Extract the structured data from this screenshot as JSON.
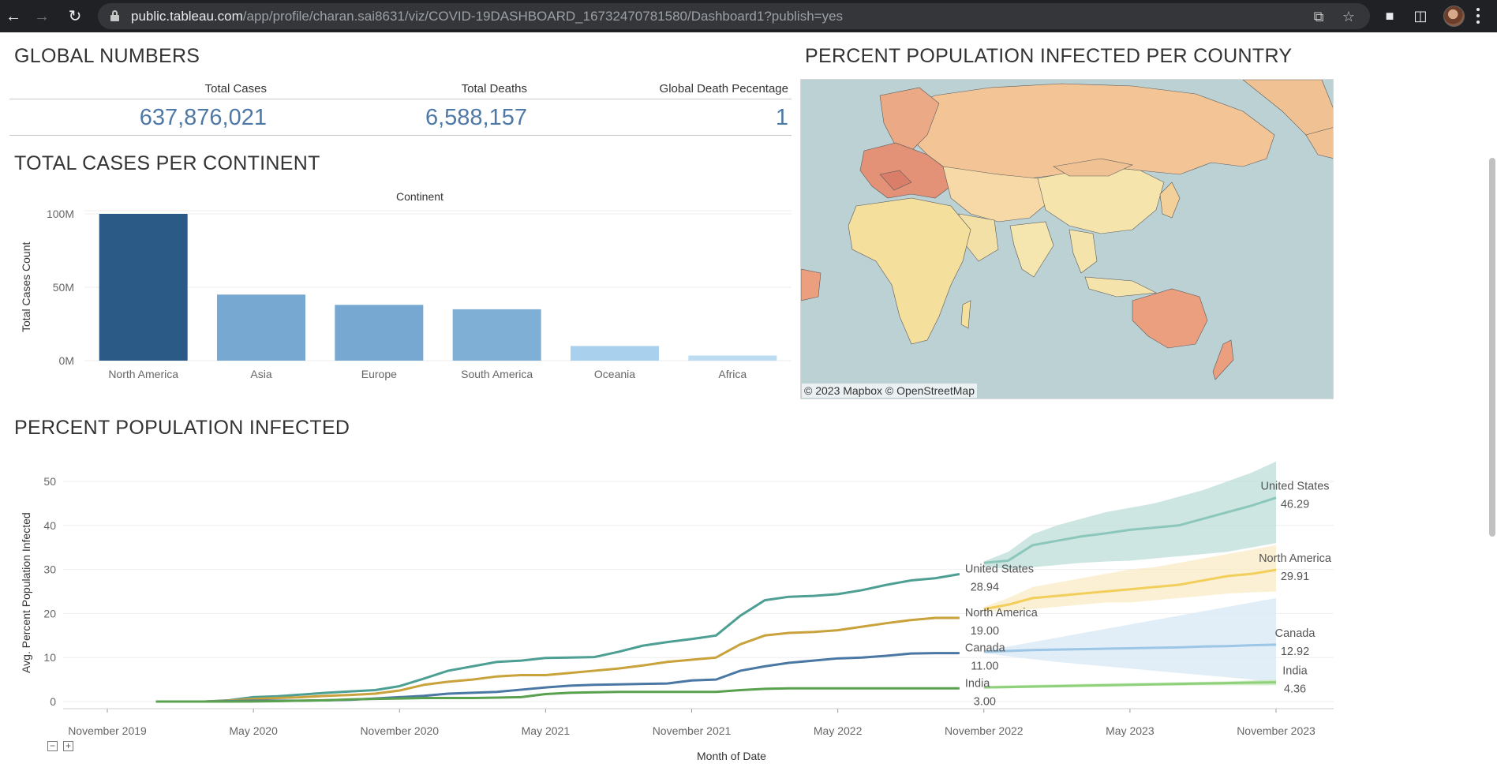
{
  "browser": {
    "url_host": "public.tableau.com",
    "url_path": "/app/profile/charan.sai8631/viz/COVID-19DASHBOARD_16732470781580/Dashboard1?publish=yes",
    "icons": [
      "back-arrow-icon",
      "forward-arrow-icon",
      "reload-icon",
      "lock-icon",
      "share-icon",
      "star-icon",
      "puzzle-icon",
      "sidebar-icon",
      "avatar",
      "kebab-menu-icon"
    ]
  },
  "global_numbers": {
    "title": "GLOBAL NUMBERS",
    "columns": [
      {
        "header": "Total Cases",
        "value": "637,876,021"
      },
      {
        "header": "Total Deaths",
        "value": "6,588,157"
      },
      {
        "header": "Global Death Pecentage",
        "value": "1"
      }
    ],
    "value_color": "#4e79a7"
  },
  "continent_section": {
    "title": "TOTAL CASES PER CONTINENT"
  },
  "map_section": {
    "title": "PERCENT POPULATION INFECTED PER COUNTRY",
    "credit": "© 2023 Mapbox  © OpenStreetMap"
  },
  "infected_section": {
    "title": "PERCENT POPULATION INFECTED"
  },
  "chart_data": [
    {
      "type": "bar",
      "title": "",
      "header": "Continent",
      "xlabel": "",
      "ylabel": "Total Cases Count",
      "categories": [
        "North America",
        "Asia",
        "Europe",
        "South America",
        "Oceania",
        "Africa"
      ],
      "values": [
        100000000,
        45000000,
        38000000,
        35000000,
        10000000,
        3500000
      ],
      "ylim": [
        0,
        100000000
      ],
      "yticks": [
        0,
        50000000,
        100000000
      ],
      "ytick_labels": [
        "0M",
        "50M",
        "100M"
      ],
      "colors": [
        "#2b5a87",
        "#77a8d2",
        "#77a8d2",
        "#80afd5",
        "#a9d0ec",
        "#bcdcf2"
      ],
      "grid": true
    },
    {
      "type": "line",
      "title": "",
      "xlabel": "Month of Date",
      "ylabel": "Avg. Percent Population Infected",
      "ylim": [
        0,
        55
      ],
      "yticks": [
        0,
        10,
        20,
        30,
        40,
        50
      ],
      "x_range": [
        "2019-10",
        "2024-02"
      ],
      "x_ticks": [
        "2019-11",
        "2020-05",
        "2020-11",
        "2021-05",
        "2021-11",
        "2022-05",
        "2022-11",
        "2023-05",
        "2023-11"
      ],
      "x_tick_labels": [
        "November 2019",
        "May 2020",
        "November 2020",
        "May 2021",
        "November 2021",
        "May 2022",
        "November 2022",
        "May 2023",
        "November 2023"
      ],
      "grid": true,
      "series": [
        {
          "name": "United States",
          "color": "#4e9f93",
          "forecast_color": "#8cc7bc",
          "band_color": "#bcded8",
          "x": [
            "2020-01",
            "2020-02",
            "2020-03",
            "2020-04",
            "2020-05",
            "2020-06",
            "2020-07",
            "2020-08",
            "2020-09",
            "2020-10",
            "2020-11",
            "2020-12",
            "2021-01",
            "2021-02",
            "2021-03",
            "2021-04",
            "2021-05",
            "2021-06",
            "2021-07",
            "2021-08",
            "2021-09",
            "2021-10",
            "2021-11",
            "2021-12",
            "2022-01",
            "2022-02",
            "2022-03",
            "2022-04",
            "2022-05",
            "2022-06",
            "2022-07",
            "2022-08",
            "2022-09",
            "2022-10"
          ],
          "y": [
            0,
            0,
            0,
            0.3,
            1.0,
            1.2,
            1.6,
            2.0,
            2.3,
            2.6,
            3.5,
            5.2,
            7.0,
            8.0,
            9.0,
            9.3,
            9.9,
            10.0,
            10.1,
            11.3,
            12.7,
            13.5,
            14.2,
            15.0,
            19.5,
            23.0,
            23.8,
            24.0,
            24.4,
            25.3,
            26.5,
            27.5,
            28.0,
            28.94
          ],
          "end_label": "28.94",
          "forecast_x": [
            "2022-11",
            "2022-12",
            "2023-01",
            "2023-02",
            "2023-03",
            "2023-04",
            "2023-05",
            "2023-06",
            "2023-07",
            "2023-08",
            "2023-09",
            "2023-10",
            "2023-11"
          ],
          "forecast_y": [
            31.5,
            32.0,
            35.5,
            36.5,
            37.5,
            38.2,
            39.0,
            39.5,
            40.0,
            41.5,
            43.0,
            44.5,
            46.29
          ],
          "forecast_label": "46.29",
          "band_low": [
            30.8,
            30.0,
            30.5,
            31.0,
            31.5,
            31.8,
            32.0,
            32.5,
            33.0,
            33.5,
            34.0,
            35.0,
            36.0
          ],
          "band_high": [
            31.8,
            34.0,
            38.0,
            40.0,
            41.5,
            43.0,
            44.0,
            45.0,
            46.5,
            48.0,
            50.0,
            52.0,
            54.5
          ]
        },
        {
          "name": "North America",
          "color": "#c9a23c",
          "forecast_color": "#f2ce5b",
          "band_color": "#faebc4",
          "x": [
            "2020-01",
            "2020-02",
            "2020-03",
            "2020-04",
            "2020-05",
            "2020-06",
            "2020-07",
            "2020-08",
            "2020-09",
            "2020-10",
            "2020-11",
            "2020-12",
            "2021-01",
            "2021-02",
            "2021-03",
            "2021-04",
            "2021-05",
            "2021-06",
            "2021-07",
            "2021-08",
            "2021-09",
            "2021-10",
            "2021-11",
            "2021-12",
            "2022-01",
            "2022-02",
            "2022-03",
            "2022-04",
            "2022-05",
            "2022-06",
            "2022-07",
            "2022-08",
            "2022-09",
            "2022-10"
          ],
          "y": [
            0,
            0,
            0,
            0.2,
            0.6,
            0.8,
            1.0,
            1.3,
            1.5,
            1.8,
            2.5,
            3.8,
            4.5,
            5.0,
            5.7,
            6.0,
            6.0,
            6.5,
            7.0,
            7.5,
            8.2,
            9.0,
            9.5,
            10.0,
            13.0,
            15.0,
            15.6,
            15.8,
            16.2,
            17.0,
            17.8,
            18.5,
            19.0,
            19.0
          ],
          "end_label": "19.00",
          "forecast_x": [
            "2022-11",
            "2022-12",
            "2023-01",
            "2023-02",
            "2023-03",
            "2023-04",
            "2023-05",
            "2023-06",
            "2023-07",
            "2023-08",
            "2023-09",
            "2023-10",
            "2023-11"
          ],
          "forecast_y": [
            21.0,
            22.0,
            23.5,
            24.0,
            24.5,
            25.0,
            25.5,
            26.0,
            26.5,
            27.5,
            28.5,
            29.0,
            29.91
          ],
          "forecast_label": "29.91",
          "band_low": [
            20.5,
            20.5,
            21.0,
            21.5,
            22.0,
            22.5,
            22.5,
            23.0,
            23.5,
            24.0,
            24.5,
            24.8,
            25.0
          ],
          "band_high": [
            21.5,
            23.5,
            26.0,
            27.0,
            28.0,
            29.0,
            30.0,
            30.5,
            31.5,
            32.5,
            33.5,
            34.5,
            35.5
          ]
        },
        {
          "name": "Canada",
          "color": "#4a77a3",
          "forecast_color": "#9cc6e6",
          "band_color": "#d7e8f4",
          "x": [
            "2020-01",
            "2020-02",
            "2020-03",
            "2020-04",
            "2020-05",
            "2020-06",
            "2020-07",
            "2020-08",
            "2020-09",
            "2020-10",
            "2020-11",
            "2020-12",
            "2021-01",
            "2021-02",
            "2021-03",
            "2021-04",
            "2021-05",
            "2021-06",
            "2021-07",
            "2021-08",
            "2021-09",
            "2021-10",
            "2021-11",
            "2021-12",
            "2022-01",
            "2022-02",
            "2022-03",
            "2022-04",
            "2022-05",
            "2022-06",
            "2022-07",
            "2022-08",
            "2022-09",
            "2022-10"
          ],
          "y": [
            0,
            0,
            0,
            0.1,
            0.2,
            0.2,
            0.2,
            0.3,
            0.4,
            0.7,
            1.0,
            1.3,
            1.8,
            2.0,
            2.2,
            2.7,
            3.2,
            3.6,
            3.8,
            3.9,
            4.0,
            4.1,
            4.8,
            5.0,
            7.0,
            8.0,
            8.8,
            9.3,
            9.8,
            10.0,
            10.4,
            10.9,
            11.0,
            11.0
          ],
          "end_label": "11.00",
          "forecast_x": [
            "2022-11",
            "2022-12",
            "2023-01",
            "2023-02",
            "2023-03",
            "2023-04",
            "2023-05",
            "2023-06",
            "2023-07",
            "2023-08",
            "2023-09",
            "2023-10",
            "2023-11"
          ],
          "forecast_y": [
            11.3,
            11.5,
            11.7,
            11.8,
            11.9,
            12.0,
            12.1,
            12.2,
            12.3,
            12.5,
            12.6,
            12.8,
            12.92
          ],
          "forecast_label": "12.92",
          "band_low": [
            11.0,
            10.3,
            9.6,
            9.0,
            8.5,
            8.0,
            7.5,
            7.0,
            6.5,
            6.0,
            5.5,
            5.0,
            4.0
          ],
          "band_high": [
            11.6,
            12.5,
            13.5,
            14.5,
            15.5,
            16.5,
            17.5,
            18.5,
            19.5,
            20.5,
            21.5,
            22.5,
            23.5
          ]
        },
        {
          "name": "India",
          "color": "#59a14f",
          "forecast_color": "#8fd17a",
          "band_color": "#c9e8bd",
          "x": [
            "2020-01",
            "2020-02",
            "2020-03",
            "2020-04",
            "2020-05",
            "2020-06",
            "2020-07",
            "2020-08",
            "2020-09",
            "2020-10",
            "2020-11",
            "2020-12",
            "2021-01",
            "2021-02",
            "2021-03",
            "2021-04",
            "2021-05",
            "2021-06",
            "2021-07",
            "2021-08",
            "2021-09",
            "2021-10",
            "2021-11",
            "2021-12",
            "2022-01",
            "2022-02",
            "2022-03",
            "2022-04",
            "2022-05",
            "2022-06",
            "2022-07",
            "2022-08",
            "2022-09",
            "2022-10"
          ],
          "y": [
            0,
            0,
            0,
            0,
            0.02,
            0.1,
            0.2,
            0.3,
            0.5,
            0.6,
            0.7,
            0.8,
            0.8,
            0.8,
            0.9,
            1.0,
            1.7,
            2.0,
            2.1,
            2.2,
            2.2,
            2.2,
            2.2,
            2.2,
            2.6,
            2.9,
            3.0,
            3.0,
            3.0,
            3.0,
            3.0,
            3.0,
            3.0,
            3.0
          ],
          "end_label": "3.00",
          "forecast_x": [
            "2022-11",
            "2022-12",
            "2023-01",
            "2023-02",
            "2023-03",
            "2023-04",
            "2023-05",
            "2023-06",
            "2023-07",
            "2023-08",
            "2023-09",
            "2023-10",
            "2023-11"
          ],
          "forecast_y": [
            3.2,
            3.3,
            3.4,
            3.5,
            3.6,
            3.7,
            3.8,
            3.9,
            4.0,
            4.1,
            4.2,
            4.3,
            4.36
          ],
          "forecast_label": "4.36",
          "band_low": [
            3.0,
            3.0,
            3.1,
            3.2,
            3.3,
            3.4,
            3.5,
            3.6,
            3.6,
            3.7,
            3.7,
            3.7,
            3.7
          ],
          "band_high": [
            3.5,
            3.7,
            3.8,
            3.9,
            4.0,
            4.1,
            4.2,
            4.3,
            4.4,
            4.5,
            4.6,
            4.8,
            5.0
          ]
        }
      ]
    }
  ]
}
